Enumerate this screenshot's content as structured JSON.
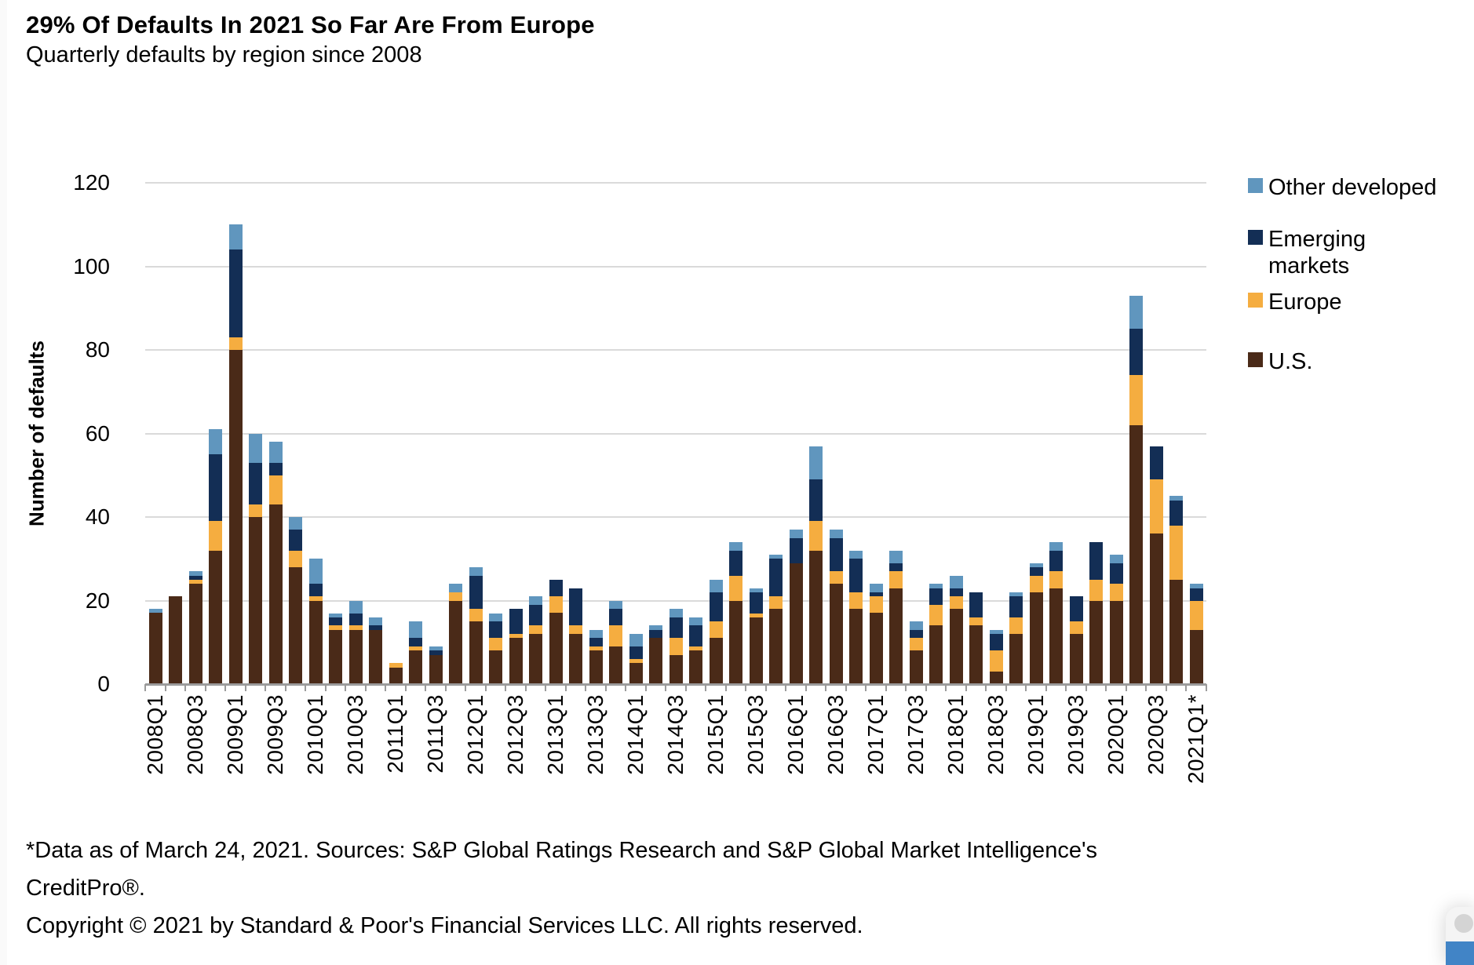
{
  "title": "29% Of Defaults In 2021 So Far Are From Europe",
  "subtitle": "Quarterly defaults by region since 2008",
  "chart_data": {
    "type": "bar",
    "stacked": true,
    "title": "29% Of Defaults In 2021 So Far Are From Europe",
    "subtitle": "Quarterly defaults by region since 2008",
    "xlabel": "",
    "ylabel": "Number of defaults",
    "ylim": [
      0,
      120
    ],
    "yticks": [
      0,
      20,
      40,
      60,
      80,
      100,
      120
    ],
    "grid": "horizontal",
    "legend_position": "right",
    "x_tick_label_rotation": 90,
    "x_tick_labels_shown_every": 2,
    "categories": [
      "2008Q1",
      "2008Q2",
      "2008Q3",
      "2008Q4",
      "2009Q1",
      "2009Q2",
      "2009Q3",
      "2009Q4",
      "2010Q1",
      "2010Q2",
      "2010Q3",
      "2010Q4",
      "2011Q1",
      "2011Q2",
      "2011Q3",
      "2011Q4",
      "2012Q1",
      "2012Q2",
      "2012Q3",
      "2012Q4",
      "2013Q1",
      "2013Q2",
      "2013Q3",
      "2013Q4",
      "2014Q1",
      "2014Q2",
      "2014Q3",
      "2014Q4",
      "2015Q1",
      "2015Q2",
      "2015Q3",
      "2015Q4",
      "2016Q1",
      "2016Q2",
      "2016Q3",
      "2016Q4",
      "2017Q1",
      "2017Q2",
      "2017Q3",
      "2017Q4",
      "2018Q1",
      "2018Q2",
      "2018Q3",
      "2018Q4",
      "2019Q1",
      "2019Q2",
      "2019Q3",
      "2019Q4",
      "2020Q1",
      "2020Q2",
      "2020Q3",
      "2020Q4",
      "2021Q1*"
    ],
    "series": [
      {
        "name": "U.S.",
        "color": "#4a2a18",
        "values": [
          17,
          21,
          24,
          32,
          80,
          40,
          43,
          28,
          20,
          13,
          13,
          13,
          4,
          8,
          7,
          20,
          15,
          8,
          11,
          12,
          17,
          12,
          8,
          9,
          5,
          11,
          7,
          8,
          11,
          20,
          16,
          18,
          29,
          32,
          24,
          18,
          17,
          23,
          8,
          14,
          18,
          14,
          3,
          12,
          22,
          23,
          12,
          20,
          20,
          62,
          36,
          25,
          13
        ]
      },
      {
        "name": "Europe",
        "color": "#f5ad40",
        "values": [
          0,
          0,
          1,
          7,
          3,
          3,
          7,
          4,
          1,
          1,
          1,
          0,
          1,
          1,
          0,
          2,
          3,
          3,
          1,
          2,
          4,
          2,
          1,
          5,
          1,
          0,
          4,
          1,
          4,
          6,
          1,
          3,
          0,
          7,
          3,
          4,
          4,
          4,
          3,
          5,
          3,
          2,
          5,
          4,
          4,
          4,
          3,
          5,
          4,
          12,
          13,
          13,
          7
        ]
      },
      {
        "name": "Emerging markets",
        "color": "#132e55",
        "values": [
          0,
          0,
          1,
          16,
          21,
          10,
          3,
          5,
          3,
          2,
          3,
          1,
          0,
          2,
          1,
          0,
          8,
          4,
          6,
          5,
          4,
          9,
          2,
          4,
          3,
          2,
          5,
          5,
          7,
          6,
          5,
          9,
          6,
          10,
          8,
          8,
          1,
          2,
          2,
          4,
          2,
          6,
          4,
          5,
          2,
          5,
          6,
          9,
          5,
          11,
          8,
          6,
          3
        ]
      },
      {
        "name": "Other developed",
        "color": "#6096be",
        "values": [
          1,
          0,
          1,
          6,
          6,
          7,
          5,
          3,
          6,
          1,
          3,
          2,
          0,
          4,
          1,
          2,
          2,
          2,
          0,
          2,
          0,
          0,
          2,
          2,
          3,
          1,
          2,
          2,
          3,
          2,
          1,
          1,
          2,
          8,
          2,
          2,
          2,
          3,
          2,
          1,
          3,
          0,
          1,
          1,
          1,
          2,
          0,
          0,
          2,
          8,
          0,
          1,
          1
        ]
      }
    ]
  },
  "y_axis": {
    "title": "Number of defaults",
    "tick_labels": [
      "120",
      "100",
      "80",
      "60",
      "40",
      "20",
      "0"
    ]
  },
  "legend": {
    "items": [
      {
        "label": "Other developed",
        "color": "#6096be"
      },
      {
        "label": "Emerging markets",
        "color": "#132e55"
      },
      {
        "label": "Europe",
        "color": "#f5ad40"
      },
      {
        "label": "U.S.",
        "color": "#4a2a18"
      }
    ]
  },
  "footer": {
    "line1": "*Data as of March 24, 2021. Sources: S&P Global Ratings Research and S&P Global Market Intelligence's",
    "line2": "CreditPro®.",
    "line3": "Copyright © 2021 by Standard & Poor's Financial Services LLC. All rights reserved."
  },
  "colors": {
    "gridline": "#dadada",
    "axis": "#9b9b9b",
    "widget_blue": "#4184c6"
  }
}
